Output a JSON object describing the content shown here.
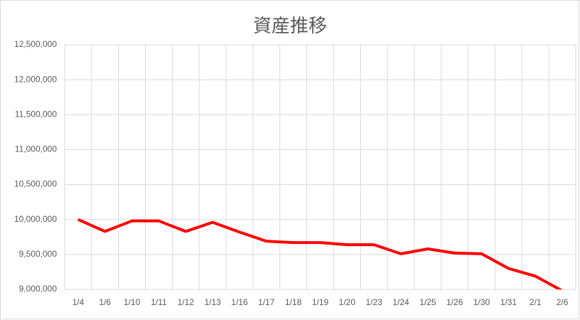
{
  "chart_data": {
    "type": "line",
    "title": "資産推移",
    "categories": [
      "1/4",
      "1/6",
      "1/10",
      "1/11",
      "1/12",
      "1/13",
      "1/16",
      "1/17",
      "1/18",
      "1/19",
      "1/20",
      "1/23",
      "1/24",
      "1/25",
      "1/26",
      "1/30",
      "1/31",
      "2/1",
      "2/6"
    ],
    "series": [
      {
        "name": "資産",
        "color": "#ff0000",
        "values": [
          10000000,
          9830000,
          9980000,
          9980000,
          9830000,
          9960000,
          9820000,
          9690000,
          9670000,
          9670000,
          9640000,
          9640000,
          9510000,
          9580000,
          9520000,
          9510000,
          9300000,
          9190000,
          8980000
        ]
      }
    ],
    "ylim": [
      9000000,
      12500000
    ],
    "yticks": [
      {
        "value": 9000000,
        "label": "9,000,000"
      },
      {
        "value": 9500000,
        "label": "9,500,000"
      },
      {
        "value": 10000000,
        "label": "10,000,000"
      },
      {
        "value": 10500000,
        "label": "10,500,000"
      },
      {
        "value": 11000000,
        "label": "11,000,000"
      },
      {
        "value": 11500000,
        "label": "11,500,000"
      },
      {
        "value": 12000000,
        "label": "12,000,000"
      },
      {
        "value": 12500000,
        "label": "12,500,000"
      }
    ],
    "grid": true
  }
}
